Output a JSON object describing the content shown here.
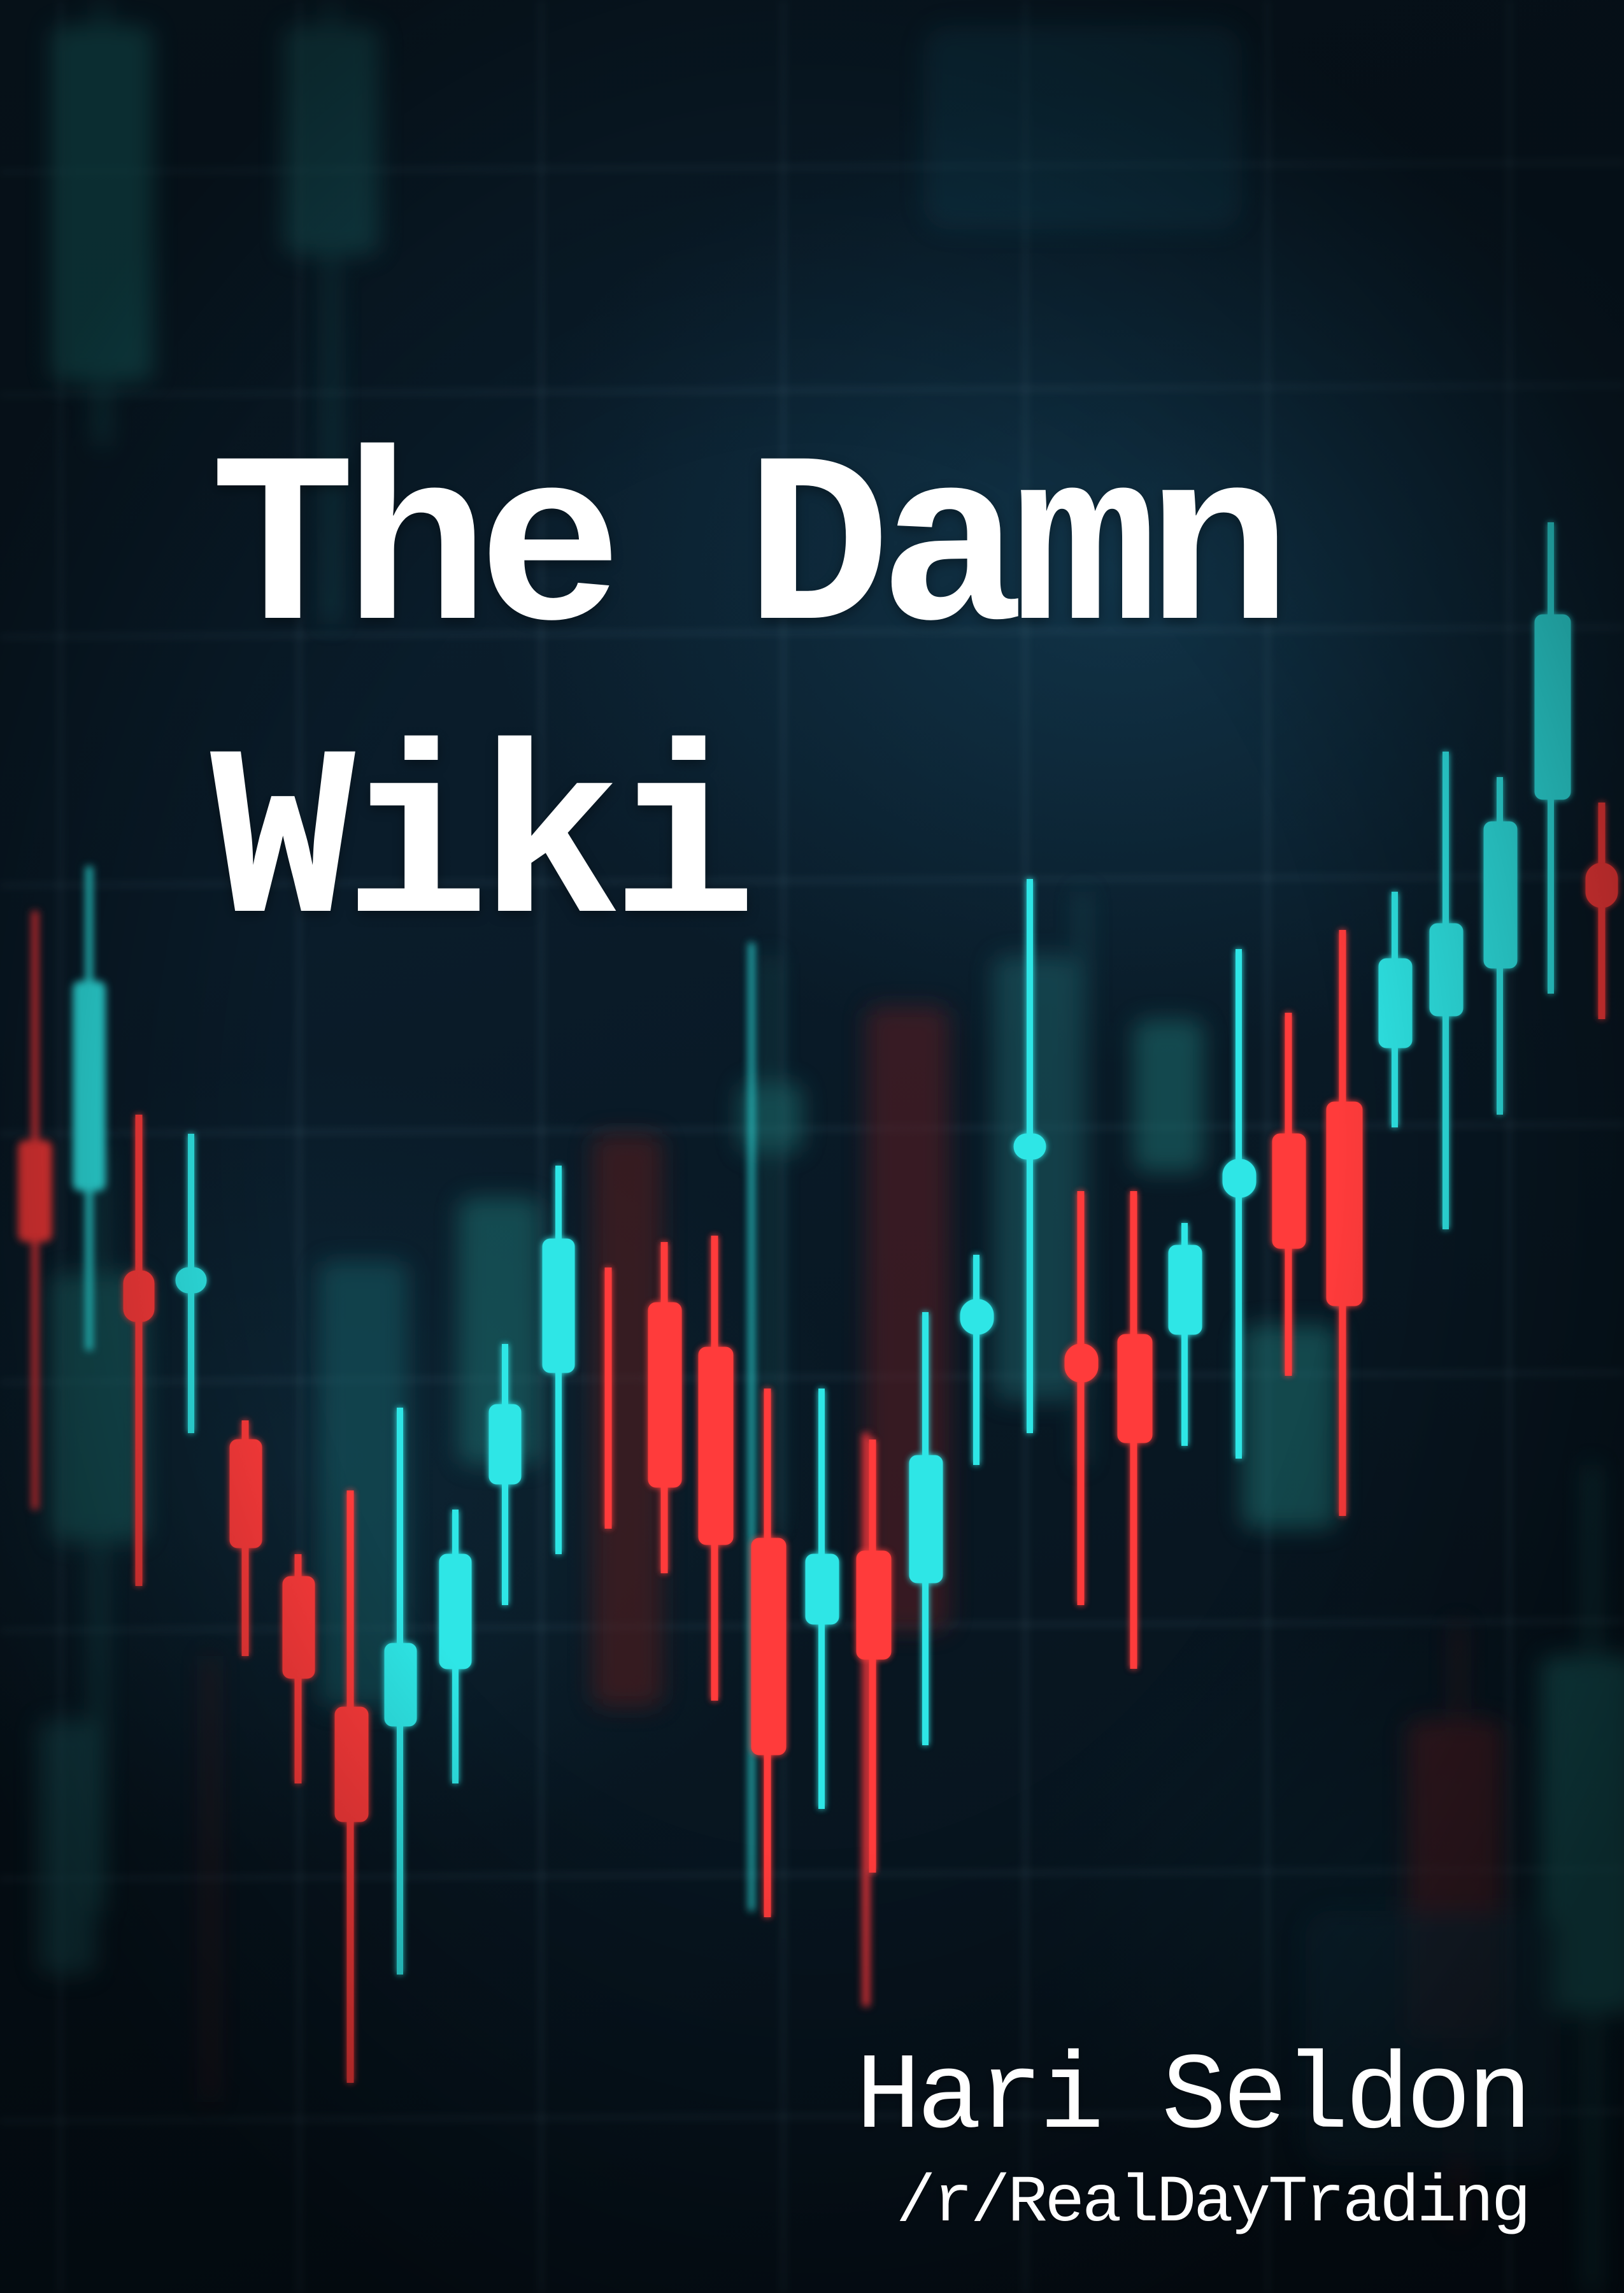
{
  "cover": {
    "title_line_1": "The Damn",
    "title_line_2": "Wiki",
    "author": "Hari Seldon",
    "community": "/r/RealDayTrading"
  },
  "colors": {
    "background": "#0a1c2a",
    "bullish_candle": "#2fe6e6",
    "bearish_candle": "#ff3a3a",
    "grid": "#5a7f94",
    "text": "#ffffff"
  }
}
